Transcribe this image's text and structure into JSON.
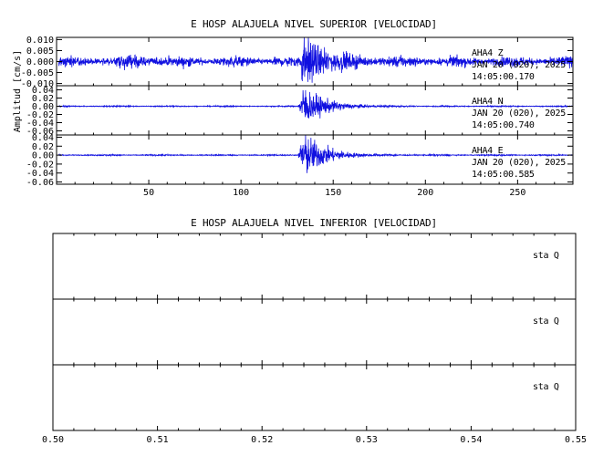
{
  "colors": {
    "trace": "#1010e0",
    "axes": "#000000",
    "background": "#ffffff"
  },
  "chart_data": [
    {
      "type": "line",
      "title": "E HOSP ALAJUELA NIVEL SUPERIOR [VELOCIDAD]",
      "ylabel": "Amplitud [cm/s]",
      "xlim": [
        0,
        280
      ],
      "x_ticks": [
        50,
        100,
        150,
        200,
        250
      ],
      "x_tick_labels": [
        "50",
        "100",
        "150",
        "200",
        "250"
      ],
      "event_onset_x": 131,
      "series": [
        {
          "name": "AHA4   Z",
          "date": "JAN 20 (020), 2025",
          "time": "14:05:00.170",
          "ylim": [
            -0.011,
            0.011
          ],
          "y_tick_labels": [
            "0.010",
            "0.005",
            "0.000",
            "-0.005",
            "-0.010"
          ],
          "y_tick_values": [
            0.01,
            0.005,
            0.0,
            -0.005,
            -0.01
          ],
          "noise_amplitude": 0.0018,
          "peak_amplitude": 0.011
        },
        {
          "name": "AHA4   N",
          "date": "JAN 20 (020), 2025",
          "time": "14:05:00.740",
          "ylim": [
            -0.07,
            0.05
          ],
          "y_tick_labels": [
            "0.04",
            "0.02",
            "0.00",
            "-0.02",
            "-0.04",
            "-0.06"
          ],
          "y_tick_values": [
            0.04,
            0.02,
            0.0,
            -0.02,
            -0.04,
            -0.06
          ],
          "noise_amplitude": 0.0012,
          "peak_amplitude": 0.048
        },
        {
          "name": "AHA4   E",
          "date": "JAN 20 (020), 2025",
          "time": "14:05:00.585",
          "ylim": [
            -0.065,
            0.045
          ],
          "y_tick_labels": [
            "0.04",
            "0.02",
            "0.00",
            "-0.02",
            "-0.04",
            "-0.06"
          ],
          "y_tick_values": [
            0.04,
            0.02,
            0.0,
            -0.02,
            -0.04,
            -0.06
          ],
          "noise_amplitude": 0.0012,
          "peak_amplitude": 0.052
        }
      ]
    },
    {
      "type": "line",
      "title": "E HOSP ALAJUELA NIVEL INFERIOR [VELOCIDAD]",
      "xlim": [
        0.5,
        0.55
      ],
      "x_ticks": [
        0.5,
        0.51,
        0.52,
        0.53,
        0.54,
        0.55
      ],
      "x_tick_labels": [
        "0.50",
        "0.51",
        "0.52",
        "0.53",
        "0.54",
        "0.55"
      ],
      "series": [
        {
          "name": "sta   Q"
        },
        {
          "name": "sta   Q"
        },
        {
          "name": "sta   Q"
        }
      ]
    }
  ]
}
